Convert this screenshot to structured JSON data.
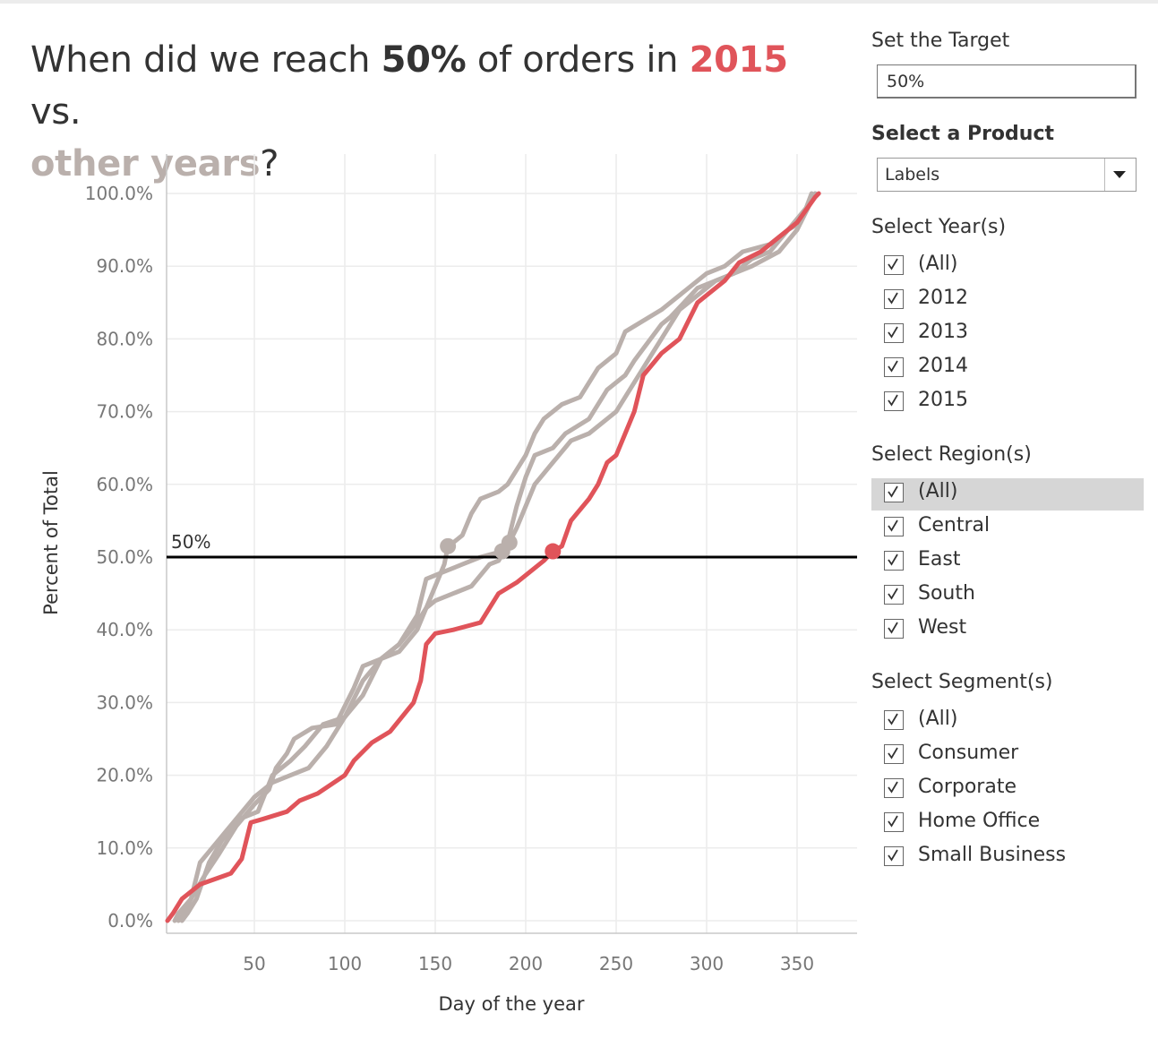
{
  "title": {
    "part1": "When did we reach ",
    "target": "50%",
    "part2": " of orders in ",
    "year": "2015",
    "part3": " vs.",
    "other": "other years",
    "part4": "?"
  },
  "colors": {
    "highlight": "#e0545a",
    "other": "#bab0ac",
    "reference_line": "#000000",
    "gridline": "#ececec"
  },
  "chart_data": {
    "type": "line",
    "title": "",
    "xlabel": "Day of the year",
    "ylabel": "Percent of Total",
    "xlim": [
      0,
      380
    ],
    "ylim": [
      0,
      100
    ],
    "x_ticks": [
      50,
      100,
      150,
      200,
      250,
      300,
      350
    ],
    "y_ticks": [
      0,
      10,
      20,
      30,
      40,
      50,
      60,
      70,
      80,
      90,
      100
    ],
    "y_tick_labels": [
      "0.0%",
      "10.0%",
      "20.0%",
      "30.0%",
      "40.0%",
      "50.0%",
      "60.0%",
      "70.0%",
      "80.0%",
      "90.0%",
      "100.0%"
    ],
    "grid": true,
    "reference_line": {
      "value": 50,
      "label": "50%"
    },
    "series": [
      {
        "highlight": true,
        "target_point": [
          215,
          50.8
        ],
        "points": [
          [
            2,
            0
          ],
          [
            5,
            1
          ],
          [
            10,
            3
          ],
          [
            20,
            5
          ],
          [
            37,
            6.5
          ],
          [
            43,
            8.5
          ],
          [
            48,
            13.5
          ],
          [
            55,
            14
          ],
          [
            68,
            15
          ],
          [
            75,
            16.5
          ],
          [
            85,
            17.5
          ],
          [
            100,
            20
          ],
          [
            105,
            22
          ],
          [
            115,
            24.5
          ],
          [
            125,
            26
          ],
          [
            138,
            30
          ],
          [
            142,
            33
          ],
          [
            145,
            38
          ],
          [
            150,
            39.5
          ],
          [
            160,
            40
          ],
          [
            175,
            41
          ],
          [
            180,
            43
          ],
          [
            185,
            45
          ],
          [
            195,
            46.5
          ],
          [
            210,
            49.5
          ],
          [
            215,
            50.8
          ],
          [
            220,
            51.5
          ],
          [
            225,
            55
          ],
          [
            235,
            58
          ],
          [
            240,
            60
          ],
          [
            245,
            63
          ],
          [
            250,
            64
          ],
          [
            255,
            67
          ],
          [
            260,
            70
          ],
          [
            265,
            75
          ],
          [
            275,
            78
          ],
          [
            285,
            80
          ],
          [
            295,
            85
          ],
          [
            300,
            86
          ],
          [
            310,
            88
          ],
          [
            318,
            90.5
          ],
          [
            330,
            92
          ],
          [
            340,
            94
          ],
          [
            350,
            96
          ],
          [
            360,
            99.5
          ],
          [
            362,
            100
          ]
        ]
      },
      {
        "highlight": false,
        "target_point": [
          157,
          51.5
        ],
        "points": [
          [
            6,
            0
          ],
          [
            8,
            1
          ],
          [
            15,
            3
          ],
          [
            20,
            8
          ],
          [
            30,
            11
          ],
          [
            40,
            14
          ],
          [
            50,
            17
          ],
          [
            60,
            19
          ],
          [
            70,
            20
          ],
          [
            80,
            21
          ],
          [
            90,
            24
          ],
          [
            100,
            28
          ],
          [
            110,
            33
          ],
          [
            120,
            36
          ],
          [
            130,
            37
          ],
          [
            140,
            40
          ],
          [
            150,
            46
          ],
          [
            155,
            49
          ],
          [
            157,
            51.5
          ],
          [
            160,
            52
          ],
          [
            165,
            53
          ],
          [
            170,
            56
          ],
          [
            175,
            58
          ],
          [
            185,
            59
          ],
          [
            190,
            60
          ],
          [
            195,
            62
          ],
          [
            200,
            64
          ],
          [
            205,
            67
          ],
          [
            210,
            69
          ],
          [
            220,
            71
          ],
          [
            230,
            72
          ],
          [
            240,
            76
          ],
          [
            250,
            78
          ],
          [
            255,
            81
          ],
          [
            275,
            84
          ],
          [
            290,
            87
          ],
          [
            300,
            89
          ],
          [
            310,
            90
          ],
          [
            320,
            92
          ],
          [
            335,
            93
          ],
          [
            345,
            95
          ],
          [
            355,
            98
          ],
          [
            360,
            100
          ]
        ]
      },
      {
        "highlight": false,
        "target_point": [
          187,
          50.8
        ],
        "points": [
          [
            8,
            0
          ],
          [
            11,
            1
          ],
          [
            15,
            3
          ],
          [
            22,
            6
          ],
          [
            30,
            9
          ],
          [
            40,
            13
          ],
          [
            50,
            16
          ],
          [
            58,
            18
          ],
          [
            62,
            21
          ],
          [
            68,
            23
          ],
          [
            72,
            25
          ],
          [
            82,
            26.5
          ],
          [
            95,
            27
          ],
          [
            105,
            32
          ],
          [
            110,
            35
          ],
          [
            120,
            36
          ],
          [
            130,
            38
          ],
          [
            140,
            42
          ],
          [
            145,
            47
          ],
          [
            155,
            48
          ],
          [
            165,
            49
          ],
          [
            175,
            50
          ],
          [
            187,
            50.8
          ],
          [
            190,
            52
          ],
          [
            195,
            57
          ],
          [
            200,
            61
          ],
          [
            205,
            64
          ],
          [
            215,
            65
          ],
          [
            222,
            67
          ],
          [
            235,
            69
          ],
          [
            245,
            73
          ],
          [
            250,
            74
          ],
          [
            255,
            75
          ],
          [
            260,
            77
          ],
          [
            275,
            82
          ],
          [
            280,
            83
          ],
          [
            295,
            87
          ],
          [
            305,
            88
          ],
          [
            315,
            89
          ],
          [
            325,
            91
          ],
          [
            335,
            92
          ],
          [
            345,
            95
          ],
          [
            352,
            96
          ],
          [
            358,
            100
          ]
        ]
      },
      {
        "highlight": false,
        "target_point": [
          191,
          52
        ],
        "points": [
          [
            10,
            0
          ],
          [
            13,
            1
          ],
          [
            18,
            3
          ],
          [
            25,
            8
          ],
          [
            32,
            11
          ],
          [
            42,
            14
          ],
          [
            52,
            15
          ],
          [
            60,
            20
          ],
          [
            70,
            22
          ],
          [
            78,
            24
          ],
          [
            88,
            27
          ],
          [
            100,
            28
          ],
          [
            110,
            31
          ],
          [
            120,
            36
          ],
          [
            130,
            38
          ],
          [
            140,
            41
          ],
          [
            145,
            43
          ],
          [
            150,
            44
          ],
          [
            160,
            45
          ],
          [
            170,
            46
          ],
          [
            180,
            49
          ],
          [
            185,
            49.5
          ],
          [
            191,
            52
          ],
          [
            195,
            54
          ],
          [
            205,
            60
          ],
          [
            215,
            63
          ],
          [
            225,
            66
          ],
          [
            235,
            67
          ],
          [
            250,
            70
          ],
          [
            260,
            74
          ],
          [
            270,
            78
          ],
          [
            280,
            82
          ],
          [
            285,
            84
          ],
          [
            295,
            86
          ],
          [
            305,
            88
          ],
          [
            315,
            89
          ],
          [
            325,
            90
          ],
          [
            340,
            92
          ],
          [
            350,
            95
          ],
          [
            360,
            100
          ]
        ]
      }
    ]
  },
  "panel": {
    "target": {
      "label": "Set the Target",
      "value": "50%"
    },
    "product": {
      "label": "Select a Product",
      "value": "Labels"
    },
    "years": {
      "label": "Select Year(s)",
      "options": [
        "(All)",
        "2012",
        "2013",
        "2014",
        "2015"
      ]
    },
    "regions": {
      "label": "Select Region(s)",
      "options": [
        "(All)",
        "Central",
        "East",
        "South",
        "West"
      ]
    },
    "segments": {
      "label": "Select Segment(s)",
      "options": [
        "(All)",
        "Consumer",
        "Corporate",
        "Home Office",
        "Small Business"
      ]
    }
  }
}
